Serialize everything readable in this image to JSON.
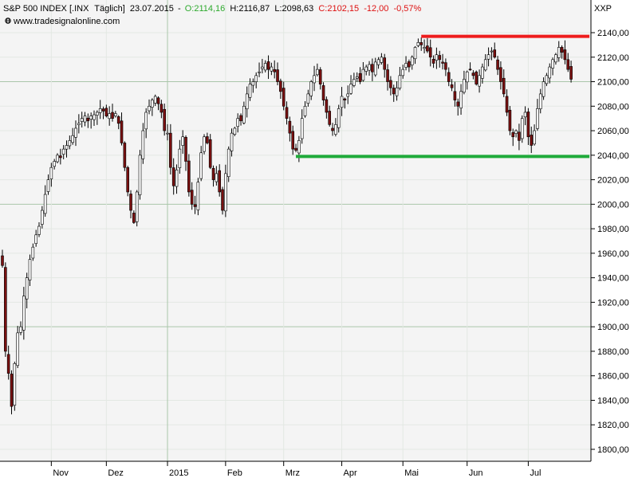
{
  "header": {
    "symbol": "S&P 500 INDEX [.INX",
    "interval": "Täglich]",
    "date": "23.07.2015",
    "open": "O:2114,16",
    "high": "H:2116,87",
    "low": "L:2098,63",
    "close": "C:2102,15",
    "change": "-12,00",
    "change_pct": "-0,57%",
    "website": "www.tradesignalonline.com",
    "axis_code": "XXP"
  },
  "colors": {
    "up": "#2eaa2e",
    "down": "#dd1111",
    "bull_body": "#ffffff",
    "bear_body": "#7a1010",
    "resistance": "#ee1c1c",
    "support": "#1faa3a",
    "plot_bg": "#f4f4f4",
    "grid": "#b5ccb5"
  },
  "chart_data": {
    "type": "candlestick",
    "title": "S&P 500 INDEX",
    "ylim": [
      1790,
      2148
    ],
    "yticks": [
      1800,
      1820,
      1840,
      1860,
      1880,
      1900,
      1920,
      1940,
      1960,
      1980,
      2000,
      2020,
      2040,
      2060,
      2080,
      2100,
      2120,
      2140
    ],
    "ytick_labels": [
      "1800,00",
      "1820,00",
      "1840,00",
      "1860,00",
      "1880,00",
      "1900,00",
      "1920,00",
      "1940,00",
      "1960,00",
      "1980,00",
      "2000,00",
      "2020,00",
      "2040,00",
      "2060,00",
      "2080,00",
      "2100,00",
      "2120,00",
      "2140,00"
    ],
    "xlim": [
      1,
      193
    ],
    "xticks": [
      {
        "label": "Nov",
        "x": 17
      },
      {
        "label": "Dez",
        "x": 35
      },
      {
        "label": "2015",
        "x": 55
      },
      {
        "label": "Feb",
        "x": 74
      },
      {
        "label": "Mrz",
        "x": 93
      },
      {
        "label": "Apr",
        "x": 112
      },
      {
        "label": "Mai",
        "x": 132
      },
      {
        "label": "Jun",
        "x": 153
      },
      {
        "label": "Jul",
        "x": 173
      }
    ],
    "major_grid_y": [
      2000,
      2100,
      1900
    ],
    "horizontal_lines": [
      {
        "name": "resistance",
        "value": 2137,
        "from_x": 138,
        "to_x": 193
      },
      {
        "name": "support",
        "value": 2039,
        "from_x": 97,
        "to_x": 193
      }
    ],
    "anchors": [
      [
        1,
        1950
      ],
      [
        2,
        1880
      ],
      [
        3,
        1862
      ],
      [
        4,
        1835
      ],
      [
        5,
        1870
      ],
      [
        6,
        1895
      ],
      [
        7,
        1900
      ],
      [
        8,
        1925
      ],
      [
        9,
        1940
      ],
      [
        10,
        1955
      ],
      [
        11,
        1965
      ],
      [
        12,
        1975
      ],
      [
        13,
        1982
      ],
      [
        14,
        1995
      ],
      [
        15,
        2008
      ],
      [
        16,
        2020
      ],
      [
        17,
        2030
      ],
      [
        18,
        2035
      ],
      [
        19,
        2040
      ],
      [
        20,
        2038
      ],
      [
        21,
        2045
      ],
      [
        22,
        2048
      ],
      [
        23,
        2052
      ],
      [
        24,
        2056
      ],
      [
        25,
        2062
      ],
      [
        26,
        2066
      ],
      [
        27,
        2070
      ],
      [
        28,
        2072
      ],
      [
        29,
        2068
      ],
      [
        30,
        2072
      ],
      [
        31,
        2073
      ],
      [
        32,
        2075
      ],
      [
        33,
        2078
      ],
      [
        34,
        2076
      ],
      [
        35,
        2072
      ],
      [
        36,
        2074
      ],
      [
        37,
        2070
      ],
      [
        38,
        2074
      ],
      [
        39,
        2066
      ],
      [
        40,
        2050
      ],
      [
        41,
        2030
      ],
      [
        42,
        2010
      ],
      [
        43,
        1995
      ],
      [
        44,
        1985
      ],
      [
        45,
        2010
      ],
      [
        46,
        2040
      ],
      [
        47,
        2060
      ],
      [
        48,
        2075
      ],
      [
        49,
        2080
      ],
      [
        50,
        2085
      ],
      [
        51,
        2088
      ],
      [
        52,
        2082
      ],
      [
        53,
        2075
      ],
      [
        54,
        2060
      ],
      [
        55,
        2058
      ],
      [
        56,
        2030
      ],
      [
        57,
        2015
      ],
      [
        58,
        2028
      ],
      [
        59,
        2045
      ],
      [
        60,
        2055
      ],
      [
        61,
        2035
      ],
      [
        62,
        2010
      ],
      [
        63,
        2000
      ],
      [
        64,
        1998
      ],
      [
        65,
        2018
      ],
      [
        66,
        2042
      ],
      [
        67,
        2055
      ],
      [
        68,
        2050
      ],
      [
        69,
        2030
      ],
      [
        70,
        2020
      ],
      [
        71,
        2025
      ],
      [
        72,
        2010
      ],
      [
        73,
        1995
      ],
      [
        74,
        2025
      ],
      [
        75,
        2045
      ],
      [
        76,
        2058
      ],
      [
        77,
        2062
      ],
      [
        78,
        2070
      ],
      [
        79,
        2068
      ],
      [
        80,
        2080
      ],
      [
        81,
        2090
      ],
      [
        82,
        2098
      ],
      [
        83,
        2100
      ],
      [
        84,
        2105
      ],
      [
        85,
        2108
      ],
      [
        86,
        2112
      ],
      [
        87,
        2115
      ],
      [
        88,
        2110
      ],
      [
        89,
        2112
      ],
      [
        90,
        2108
      ],
      [
        91,
        2100
      ],
      [
        92,
        2092
      ],
      [
        93,
        2080
      ],
      [
        94,
        2070
      ],
      [
        95,
        2058
      ],
      [
        96,
        2045
      ],
      [
        97,
        2044
      ],
      [
        98,
        2052
      ],
      [
        99,
        2070
      ],
      [
        100,
        2080
      ],
      [
        101,
        2090
      ],
      [
        102,
        2100
      ],
      [
        103,
        2105
      ],
      [
        104,
        2110
      ],
      [
        105,
        2098
      ],
      [
        106,
        2085
      ],
      [
        107,
        2075
      ],
      [
        108,
        2065
      ],
      [
        109,
        2060
      ],
      [
        110,
        2065
      ],
      [
        111,
        2078
      ],
      [
        112,
        2088
      ],
      [
        113,
        2085
      ],
      [
        114,
        2090
      ],
      [
        115,
        2098
      ],
      [
        116,
        2102
      ],
      [
        117,
        2104
      ],
      [
        118,
        2100
      ],
      [
        119,
        2110
      ],
      [
        120,
        2112
      ],
      [
        121,
        2114
      ],
      [
        122,
        2108
      ],
      [
        123,
        2116
      ],
      [
        124,
        2118
      ],
      [
        125,
        2120
      ],
      [
        126,
        2110
      ],
      [
        127,
        2100
      ],
      [
        128,
        2095
      ],
      [
        129,
        2090
      ],
      [
        130,
        2095
      ],
      [
        131,
        2105
      ],
      [
        132,
        2110
      ],
      [
        133,
        2115
      ],
      [
        134,
        2112
      ],
      [
        135,
        2120
      ],
      [
        136,
        2128
      ],
      [
        137,
        2132
      ],
      [
        138,
        2130
      ],
      [
        139,
        2128
      ],
      [
        140,
        2125
      ],
      [
        141,
        2120
      ],
      [
        142,
        2115
      ],
      [
        143,
        2122
      ],
      [
        144,
        2118
      ],
      [
        145,
        2115
      ],
      [
        146,
        2110
      ],
      [
        147,
        2100
      ],
      [
        148,
        2095
      ],
      [
        149,
        2085
      ],
      [
        150,
        2080
      ],
      [
        151,
        2092
      ],
      [
        152,
        2102
      ],
      [
        153,
        2108
      ],
      [
        154,
        2110
      ],
      [
        155,
        2105
      ],
      [
        156,
        2098
      ],
      [
        157,
        2105
      ],
      [
        158,
        2112
      ],
      [
        159,
        2118
      ],
      [
        160,
        2122
      ],
      [
        161,
        2125
      ],
      [
        162,
        2120
      ],
      [
        163,
        2110
      ],
      [
        164,
        2100
      ],
      [
        165,
        2090
      ],
      [
        166,
        2075
      ],
      [
        167,
        2060
      ],
      [
        168,
        2055
      ],
      [
        169,
        2060
      ],
      [
        170,
        2052
      ],
      [
        171,
        2070
      ],
      [
        172,
        2075
      ],
      [
        173,
        2055
      ],
      [
        174,
        2048
      ],
      [
        175,
        2060
      ],
      [
        176,
        2078
      ],
      [
        177,
        2090
      ],
      [
        178,
        2100
      ],
      [
        179,
        2105
      ],
      [
        180,
        2112
      ],
      [
        181,
        2118
      ],
      [
        182,
        2122
      ],
      [
        183,
        2128
      ],
      [
        184,
        2124
      ],
      [
        185,
        2118
      ],
      [
        186,
        2110
      ],
      [
        187,
        2102
      ]
    ]
  }
}
